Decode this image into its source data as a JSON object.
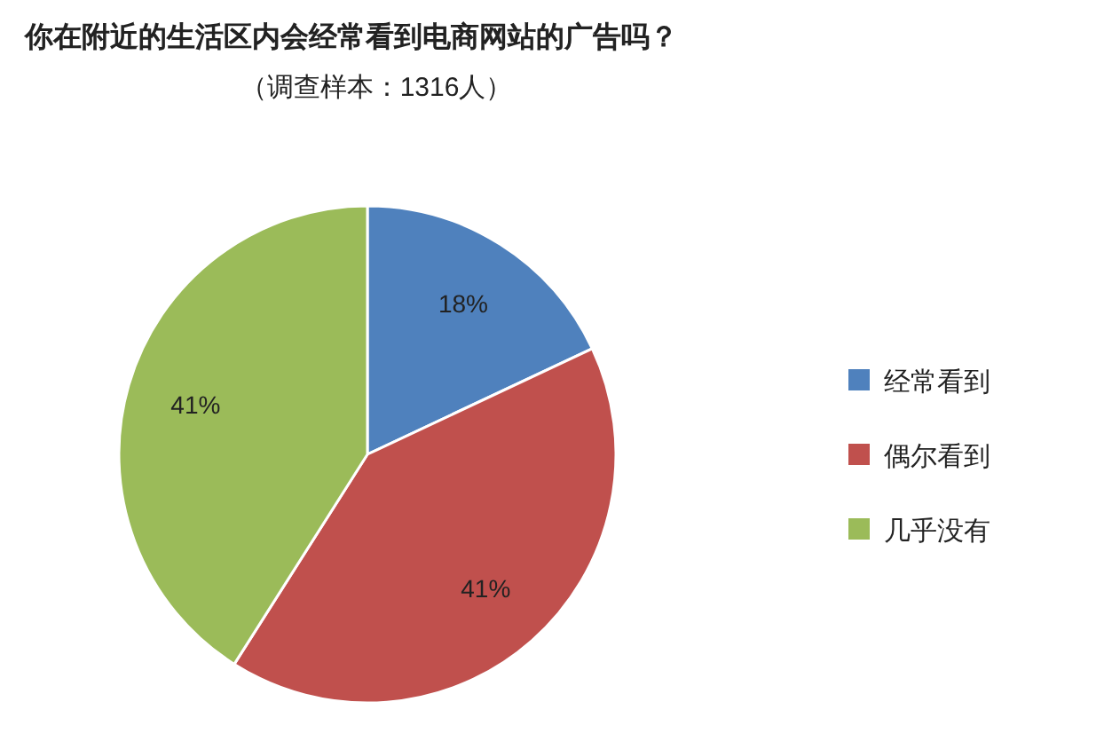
{
  "chart_data": {
    "type": "pie",
    "title": "你在附近的生活区内会经常看到电商网站的广告吗？",
    "subtitle": "（调查样本：1316人）",
    "categories": [
      "经常看到",
      "偶尔看到",
      "几乎没有"
    ],
    "values": [
      18,
      41,
      41
    ],
    "colors": [
      "#4f81bd",
      "#c0504d",
      "#9bbb59"
    ],
    "value_labels": [
      "18%",
      "41%",
      "41%"
    ],
    "legend": "right"
  }
}
